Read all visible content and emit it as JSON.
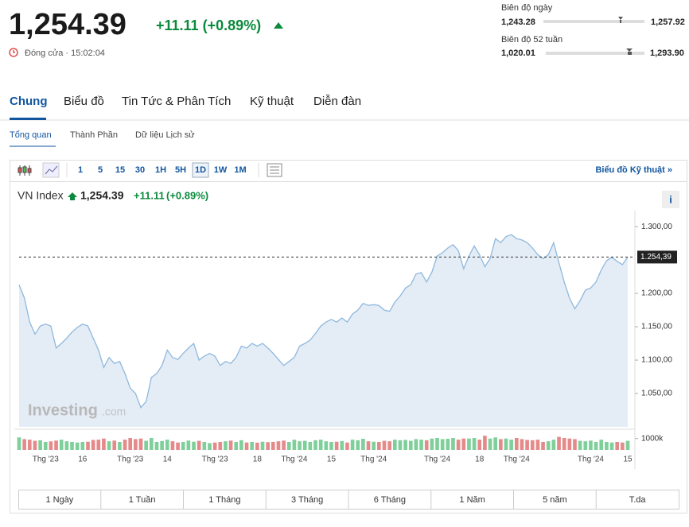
{
  "header": {
    "price": "1,254.39",
    "change": "+11.11 (+0.89%)",
    "status": "Đóng cửa · 15:02:04",
    "day_range": {
      "label": "Biên độ ngày",
      "low": "1,243.28",
      "high": "1,257.92"
    },
    "week52_range": {
      "label": "Biên độ 52 tuần",
      "low": "1,020.01",
      "high": "1,293.90"
    }
  },
  "tabs": [
    "Chung",
    "Biểu đồ",
    "Tin Tức & Phân Tích",
    "Kỹ thuật",
    "Diễn đàn"
  ],
  "subtabs": [
    "Tổng quan",
    "Thành Phần",
    "Dữ liệu Lịch sử"
  ],
  "toolbar": {
    "intervals": [
      "1",
      "5",
      "15",
      "30",
      "1H",
      "5H",
      "1D",
      "1W",
      "1M"
    ],
    "link": "Biểu đồ Kỹ thuật »"
  },
  "legend": {
    "price": "1,254.39",
    "change": "+11.11",
    "percent": "(+0.89%)",
    "info": "i"
  },
  "watermark": {
    "brand": "Investing",
    "suffix": ".com"
  },
  "ranges": [
    "1 Ngày",
    "1 Tuần",
    "1 Tháng",
    "3 Tháng",
    "6 Tháng",
    "1 Năm",
    "5 năm",
    "T.da"
  ],
  "chart_data": {
    "type": "area",
    "ylim": [
      1000,
      1318
    ],
    "yticks": [
      {
        "value": 1050,
        "label": "1.050,00"
      },
      {
        "value": 1100,
        "label": "1.100,00"
      },
      {
        "value": 1150,
        "label": "1.150,00"
      },
      {
        "value": 1200,
        "label": "1.200,00"
      },
      {
        "value": 1300,
        "label": "1.300,00"
      }
    ],
    "last_price": {
      "value": 1254.39,
      "label": "1.254,39"
    },
    "categories": [
      null,
      null,
      null,
      null,
      null,
      "Thg '23",
      null,
      null,
      null,
      null,
      null,
      null,
      "16",
      null,
      null,
      null,
      null,
      null,
      null,
      null,
      null,
      "Thg '23",
      null,
      null,
      null,
      null,
      null,
      null,
      "14",
      null,
      null,
      null,
      null,
      null,
      null,
      null,
      null,
      "Thg '23",
      null,
      null,
      null,
      null,
      null,
      null,
      null,
      "18",
      null,
      null,
      null,
      null,
      null,
      null,
      "Thg '24",
      null,
      null,
      null,
      null,
      null,
      null,
      "15",
      null,
      null,
      null,
      null,
      null,
      null,
      null,
      "Thg '24",
      null,
      null,
      null,
      null,
      null,
      null,
      null,
      null,
      null,
      null,
      null,
      "Thg '24",
      null,
      null,
      null,
      null,
      null,
      null,
      null,
      "18",
      null,
      null,
      null,
      null,
      null,
      null,
      "Thg '24",
      null,
      null,
      null,
      null,
      null,
      null,
      null,
      null,
      null,
      null,
      null,
      null,
      null,
      "Thg '24",
      null,
      null,
      null,
      null,
      null,
      null,
      "15"
    ],
    "series": [
      {
        "name": "VN Index",
        "color": "#8fb8dd",
        "fill": "#e4edf6",
        "values": [
          1213,
          1193,
          1157,
          1139,
          1151,
          1154,
          1151,
          1118,
          1125,
          1133,
          1142,
          1149,
          1154,
          1151,
          1133,
          1115,
          1089,
          1104,
          1095,
          1098,
          1080,
          1058,
          1050,
          1029,
          1038,
          1074,
          1080,
          1092,
          1115,
          1104,
          1101,
          1110,
          1118,
          1125,
          1100,
          1106,
          1110,
          1106,
          1092,
          1098,
          1095,
          1104,
          1121,
          1118,
          1125,
          1121,
          1125,
          1118,
          1110,
          1101,
          1092,
          1098,
          1104,
          1121,
          1125,
          1130,
          1140,
          1151,
          1157,
          1161,
          1157,
          1163,
          1157,
          1169,
          1175,
          1185,
          1182,
          1183,
          1182,
          1175,
          1173,
          1187,
          1196,
          1208,
          1213,
          1229,
          1231,
          1217,
          1232,
          1256,
          1261,
          1268,
          1273,
          1264,
          1237,
          1256,
          1271,
          1258,
          1240,
          1252,
          1282,
          1276,
          1285,
          1288,
          1282,
          1280,
          1276,
          1268,
          1258,
          1252,
          1258,
          1276,
          1246,
          1217,
          1193,
          1177,
          1189,
          1205,
          1208,
          1217,
          1235,
          1249,
          1254,
          1248,
          1243,
          1254.39
        ]
      }
    ],
    "volume": {
      "up_color": "#7fcf9b",
      "down_color": "#e58a8a",
      "ylim": [
        0,
        1400
      ],
      "yticks": [
        {
          "value": 1000,
          "label": "1000k"
        }
      ],
      "values": [
        1100,
        950,
        900,
        800,
        850,
        700,
        750,
        820,
        900,
        760,
        700,
        650,
        700,
        720,
        880,
        900,
        1000,
        760,
        820,
        700,
        900,
        1050,
        950,
        1000,
        800,
        1050,
        700,
        780,
        900,
        760,
        650,
        700,
        820,
        720,
        800,
        700,
        600,
        650,
        700,
        760,
        820,
        700,
        850,
        650,
        700,
        640,
        720,
        680,
        700,
        760,
        820,
        700,
        900,
        760,
        800,
        700,
        850,
        900,
        760,
        700,
        720,
        780,
        650,
        900,
        850,
        980,
        760,
        720,
        700,
        800,
        760,
        900,
        850,
        880,
        800,
        950,
        900,
        850,
        1000,
        1050,
        950,
        980,
        1050,
        900,
        1000,
        1000,
        1050,
        900,
        1250,
        1000,
        1100,
        950,
        1000,
        900,
        1050,
        950,
        880,
        850,
        900,
        700,
        760,
        900,
        1150,
        1050,
        1000,
        950,
        800,
        760,
        820,
        700,
        900,
        700,
        650,
        700,
        650,
        800
      ]
    }
  }
}
